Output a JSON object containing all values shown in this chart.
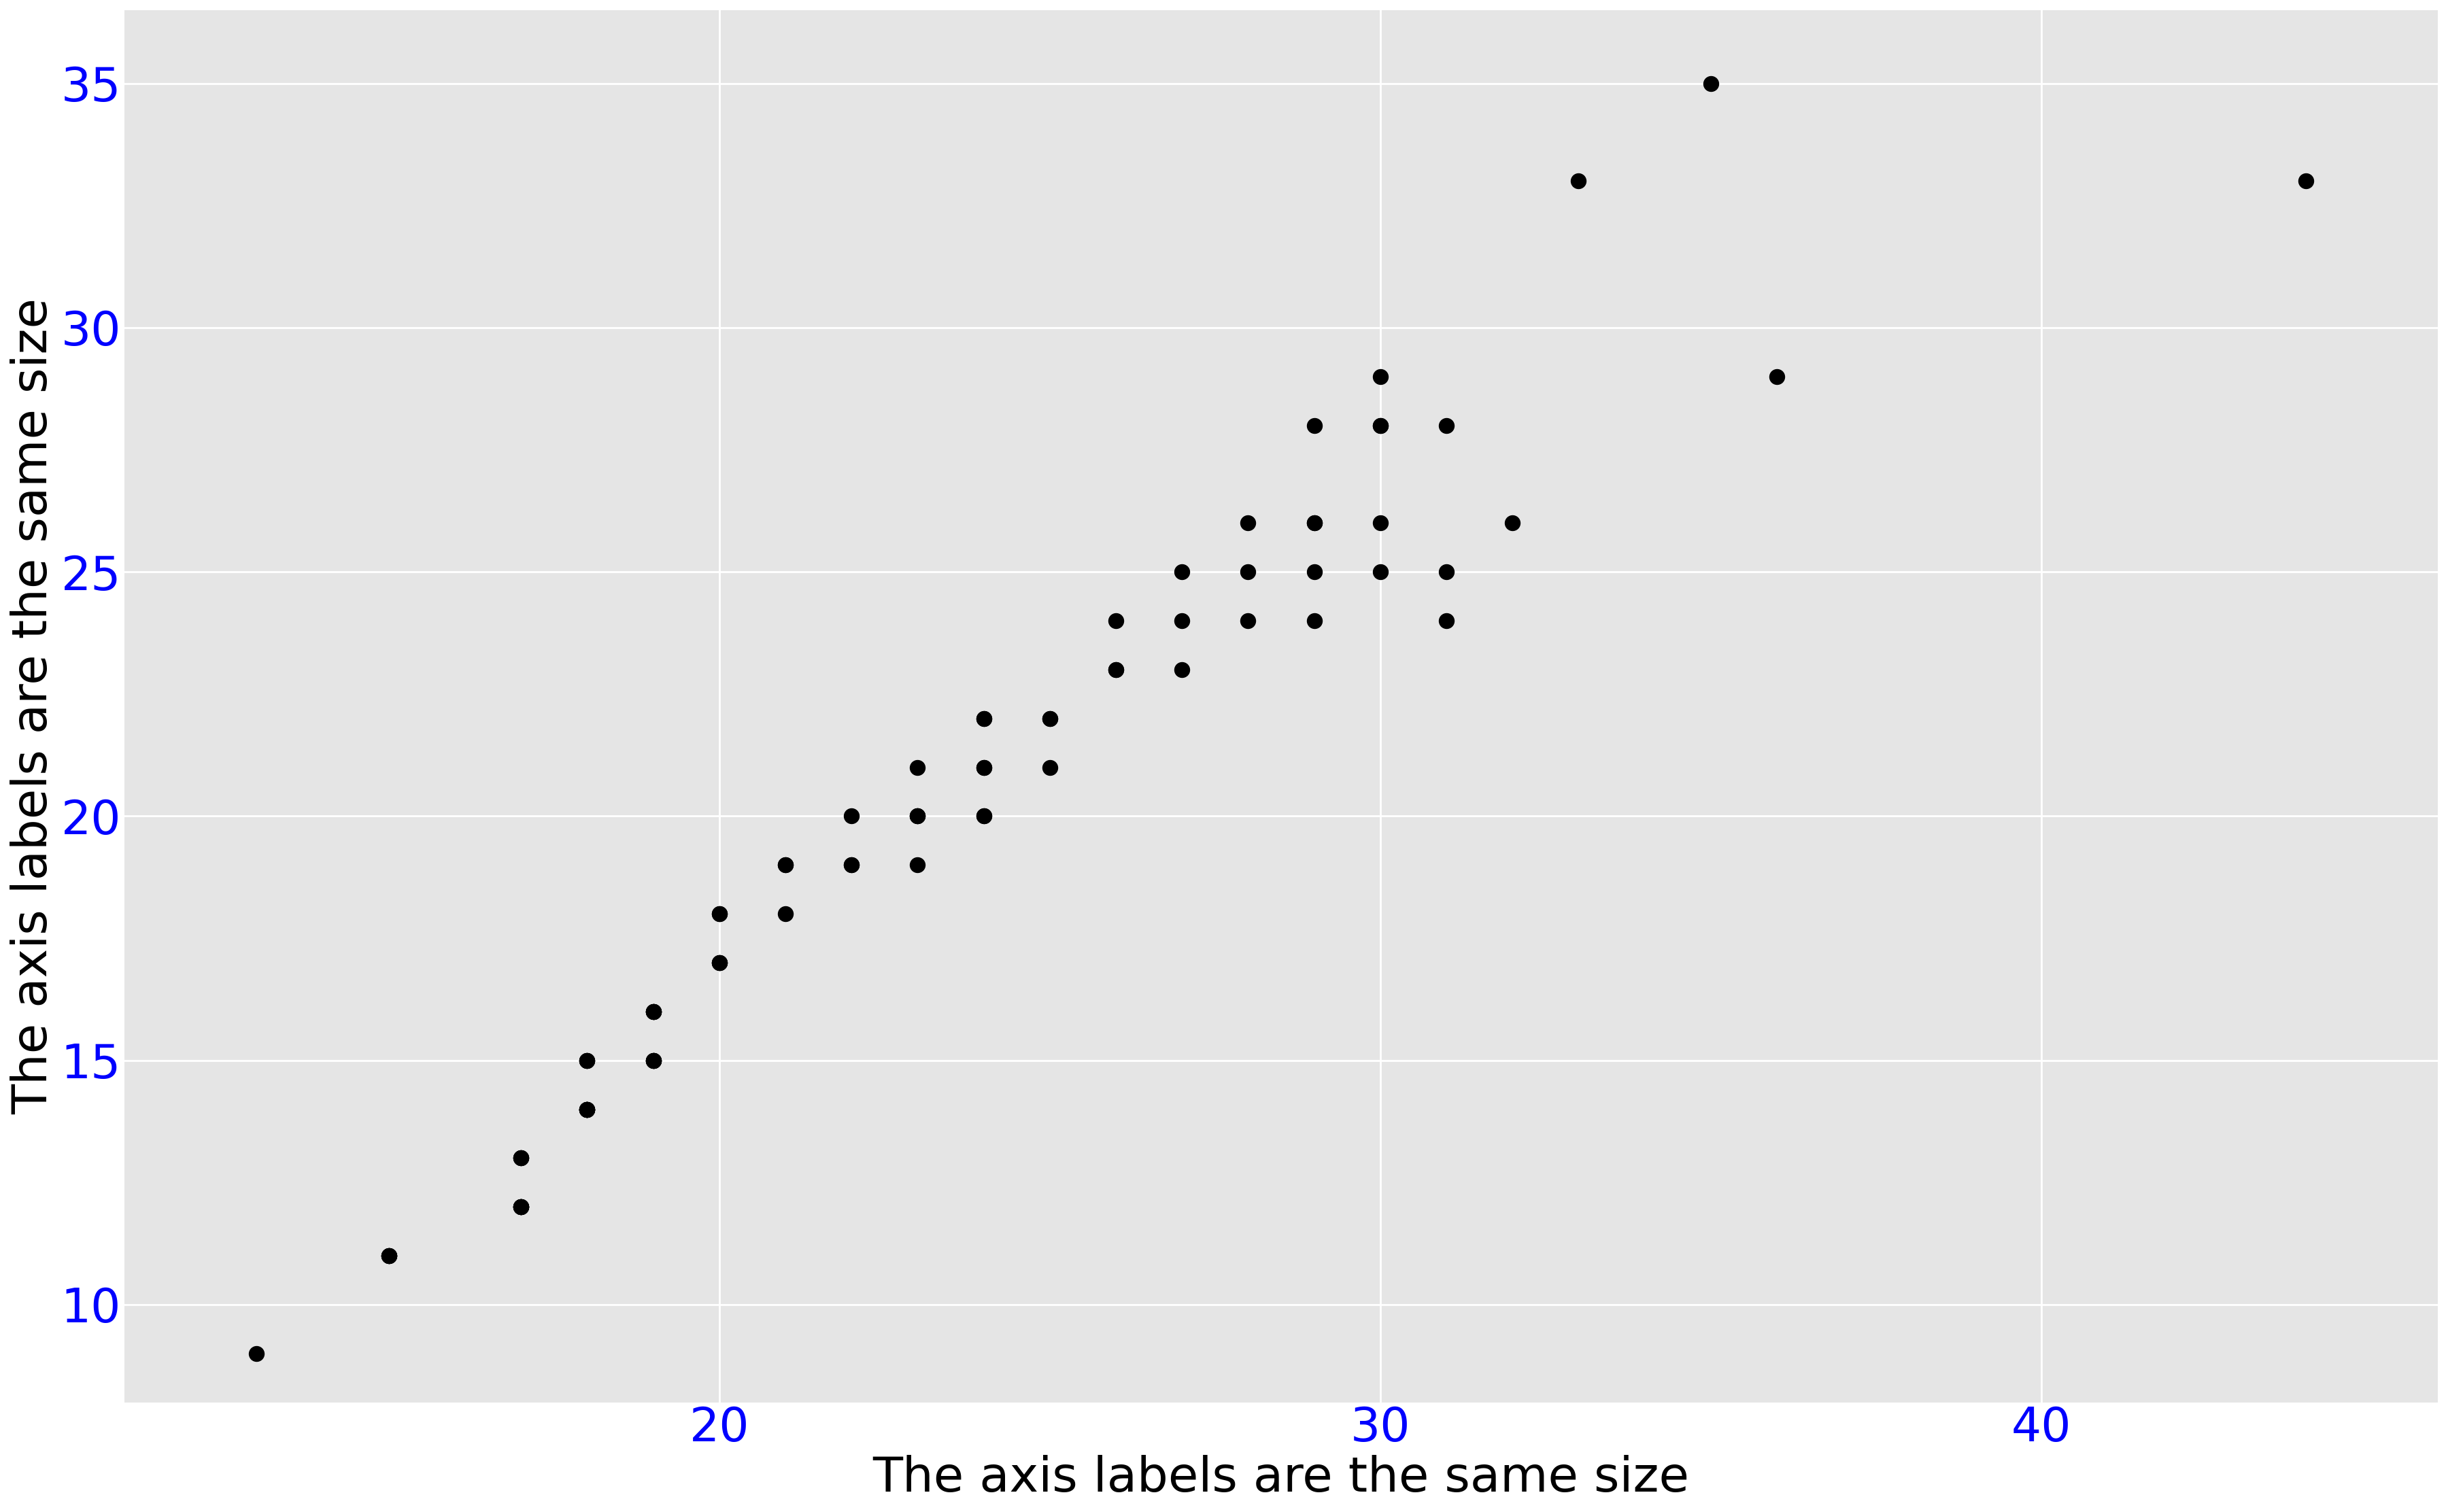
{
  "x": [
    13,
    15,
    15,
    15,
    15,
    17,
    17,
    17,
    17,
    17,
    17,
    17,
    17,
    18,
    18,
    18,
    18,
    18,
    18,
    18,
    18,
    18,
    19,
    19,
    19,
    19,
    19,
    19,
    19,
    19,
    20,
    20,
    20,
    20,
    20,
    21,
    21,
    21,
    22,
    22,
    22,
    23,
    23,
    23,
    23,
    23,
    24,
    24,
    24,
    24,
    24,
    24,
    25,
    25,
    25,
    26,
    26,
    26,
    27,
    27,
    27,
    28,
    28,
    28,
    29,
    29,
    29,
    29,
    29,
    30,
    30,
    30,
    30,
    30,
    31,
    31,
    31,
    32,
    33,
    35,
    36,
    44
  ],
  "y": [
    9,
    11,
    11,
    11,
    11,
    12,
    12,
    12,
    12,
    12,
    13,
    13,
    13,
    14,
    14,
    14,
    14,
    14,
    14,
    15,
    15,
    15,
    15,
    15,
    15,
    15,
    16,
    16,
    16,
    16,
    17,
    17,
    17,
    18,
    18,
    18,
    19,
    19,
    19,
    19,
    20,
    19,
    20,
    20,
    20,
    21,
    20,
    20,
    21,
    21,
    22,
    22,
    21,
    22,
    22,
    23,
    23,
    24,
    23,
    24,
    25,
    24,
    25,
    26,
    24,
    25,
    26,
    26,
    28,
    25,
    26,
    28,
    28,
    29,
    24,
    25,
    28,
    26,
    33,
    35,
    29,
    33
  ],
  "xlabel": "The axis labels are the same size",
  "ylabel": "The axis labels are the same size",
  "xlabel_color": "#000000",
  "ylabel_color": "#000000",
  "xlabel_fontsize": 52,
  "ylabel_fontsize": 52,
  "tick_fontsize": 50,
  "tick_color": "#0000FF",
  "marker_color": "black",
  "marker_size": 250,
  "background_color": "#e5e5e5",
  "grid_color": "white",
  "xlim": [
    11,
    46
  ],
  "ylim": [
    8.0,
    36.5
  ],
  "xticks": [
    20,
    30,
    40
  ],
  "yticks": [
    10,
    15,
    20,
    25,
    30,
    35
  ]
}
